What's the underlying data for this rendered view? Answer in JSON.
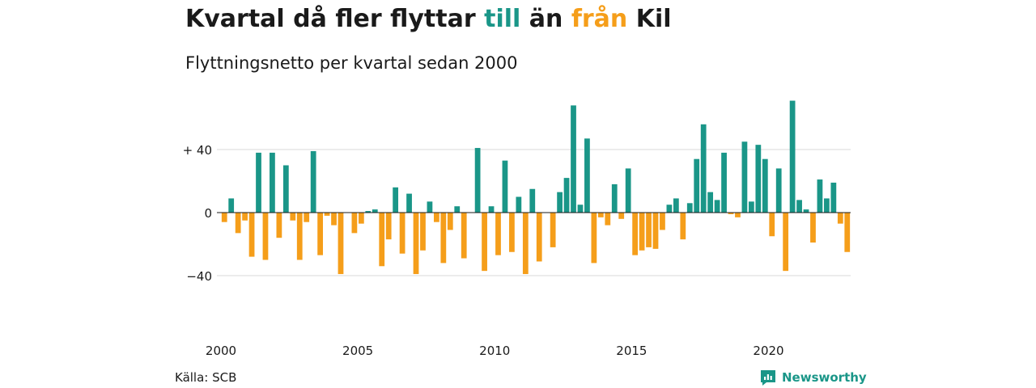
{
  "header": {
    "title_parts": [
      {
        "text": "Kvartal då fler flyttar ",
        "color": "#1a1a1a"
      },
      {
        "text": "till",
        "color": "#1a9688"
      },
      {
        "text": " än ",
        "color": "#1a1a1a"
      },
      {
        "text": "från",
        "color": "#f59e1a"
      },
      {
        "text": " Kil",
        "color": "#1a1a1a"
      }
    ],
    "subtitle": "Flyttningsnetto per kvartal sedan 2000"
  },
  "footer": {
    "source": "Källa: SCB",
    "brand": "Newsworthy",
    "brand_icon": "newsworthy-logo-icon"
  },
  "colors": {
    "positive": "#1a9688",
    "negative": "#f59e1a",
    "grid": "#d9d9d9",
    "zero_line": "#1a1a1a",
    "text": "#1a1a1a"
  },
  "chart_data": {
    "type": "bar",
    "title": "Kvartal då fler flyttar till än från Kil",
    "subtitle": "Flyttningsnetto per kvartal sedan 2000",
    "x_start": "2000-Q1",
    "xtick_labels": [
      "2000",
      "2005",
      "2010",
      "2015",
      "2020"
    ],
    "ytick_values": [
      40,
      0,
      -40
    ],
    "ytick_labels": [
      "+ 40",
      "0",
      "−40"
    ],
    "ylim": [
      -60,
      80
    ],
    "grid": "horizontal",
    "series": [
      {
        "values": [
          -6,
          9,
          -13,
          -5,
          -28,
          38,
          -30,
          38,
          -16,
          30,
          -5,
          -30,
          -6,
          39,
          -27,
          -2,
          -8,
          -39,
          0,
          -13,
          -7,
          1,
          2,
          -34,
          -17,
          16,
          -26,
          12,
          -39,
          -24,
          7,
          -6,
          -32,
          -11,
          4,
          -29,
          0,
          41,
          -37,
          4,
          -27,
          33,
          -25,
          10,
          -39,
          15,
          -31,
          0,
          -22,
          13,
          22,
          68,
          5,
          47,
          -32,
          -3,
          -8,
          18,
          -4,
          28,
          -27,
          -24,
          -22,
          -23,
          -11,
          5,
          9,
          -17,
          6,
          34,
          56,
          13,
          8,
          38,
          -1,
          -3,
          45,
          7,
          43,
          34,
          -15,
          28,
          -37,
          71,
          8,
          2,
          -19,
          21,
          9,
          19,
          -7,
          -25
        ]
      }
    ]
  }
}
